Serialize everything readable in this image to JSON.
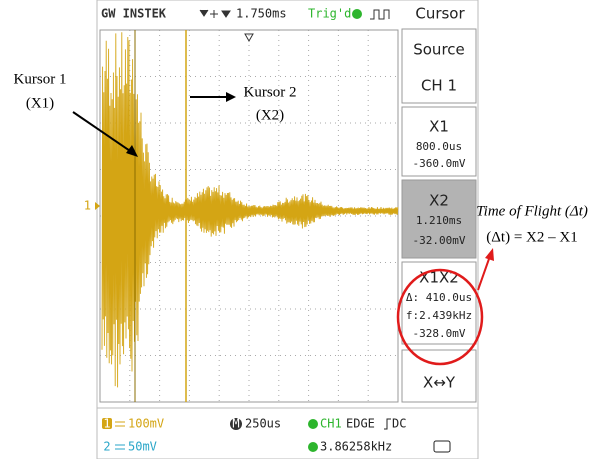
{
  "header": {
    "brand": "GW INSTEK",
    "timebase_position": "1.750ms",
    "trigger_status": "Trig'd",
    "menu_title": "Cursor"
  },
  "screen": {
    "channel_marker": "1"
  },
  "menu": {
    "source_label": "Source",
    "source_value": "CH 1",
    "x1": {
      "label": "X1",
      "time": "800.0us",
      "voltage": "-360.0mV"
    },
    "x2": {
      "label": "X2",
      "time": "1.210ms",
      "voltage": "-32.00mV"
    },
    "delta": {
      "label": "X1X2",
      "time": "Δ: 410.0us",
      "frequency": "f:2.439kHz",
      "voltage": "-328.0mV"
    },
    "swap": "X↔Y"
  },
  "footer": {
    "ch1_id": "1",
    "ch1_scale": "100mV",
    "ch2_id": "2",
    "ch2_scale": "50mV",
    "time_id": "M",
    "time_scale": "250us",
    "trigger_source": "CH1",
    "trigger_type": "EDGE",
    "trigger_coupling": "DC",
    "frequency": "3.86258kHz"
  },
  "annotations": {
    "cursor1": {
      "name": "Kursor 1",
      "label": "(X1)"
    },
    "cursor2": {
      "name": "Kursor 2",
      "label": "(X2)"
    },
    "time_of_flight": {
      "title": "Time of Flight (Δt)",
      "formula": "(Δt) = X2 – X1"
    }
  }
}
